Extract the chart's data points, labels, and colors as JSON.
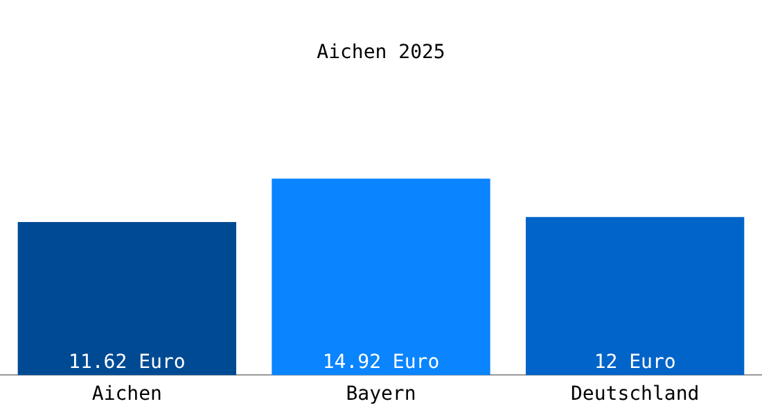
{
  "chart_data": {
    "type": "bar",
    "title": "Aichen 2025",
    "categories": [
      "Aichen",
      "Bayern",
      "Deutschland"
    ],
    "values": [
      11.62,
      14.92,
      12
    ],
    "colors": [
      "#004a94",
      "#0a84ff",
      "#0064c8"
    ],
    "value_labels": [
      "11.62 Euro",
      "14.92 Euro",
      "12 Euro"
    ],
    "grid": false,
    "legend": false
  }
}
